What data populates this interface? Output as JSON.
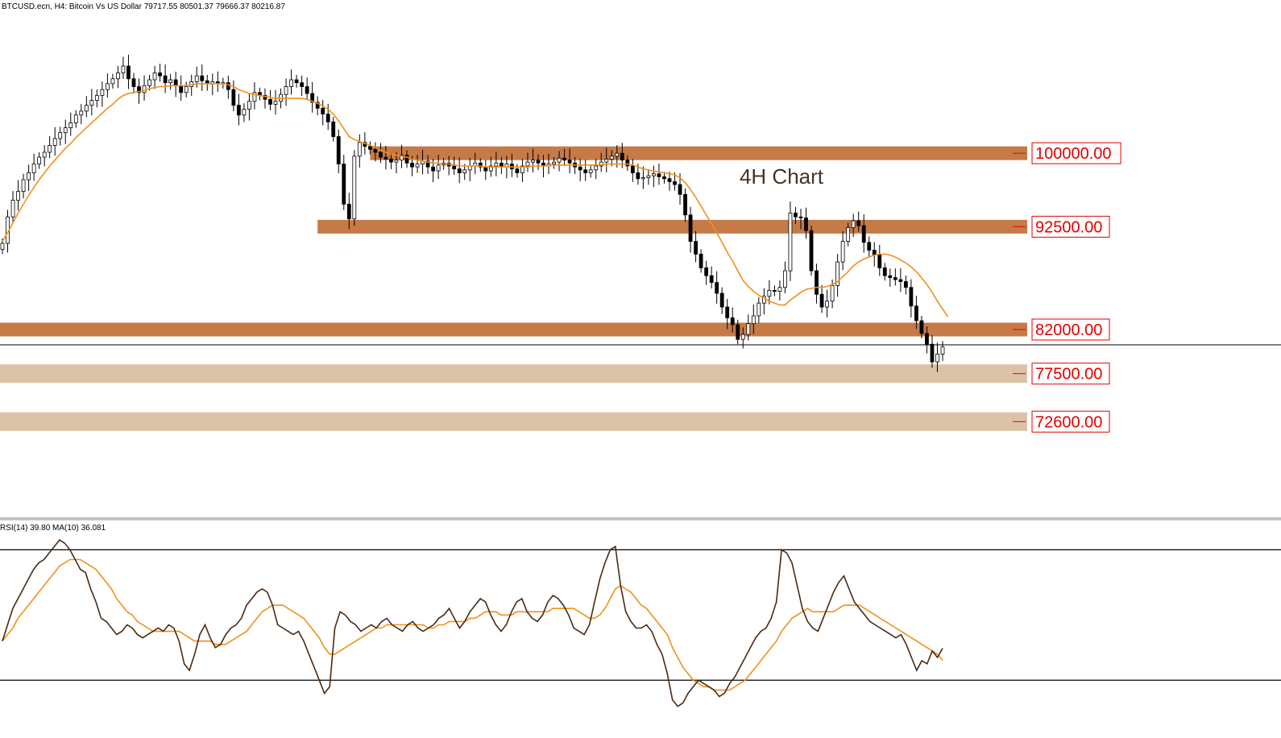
{
  "header": {
    "symbol_info": "BTCUSD.ecn, H4:  Bitcoin Vs US Dollar  79717.55 80501.37 79666.37 80216.87"
  },
  "chart_title": "4H Chart",
  "rsi_header": "RSI(14) 39.80 MA(10) 36.081",
  "colors": {
    "resistance_zone": "#c67a48",
    "support_zone": "#dcc3a8",
    "ma_line": "#f0901c",
    "rsi_line": "#4a2a12",
    "candle": "#000000",
    "label_red": "#e00000"
  },
  "chart_data": [
    {
      "type": "candlestick",
      "title": "4H Chart",
      "symbol": "BTCUSD.ecn",
      "timeframe": "H4",
      "ohlc_current": {
        "open": 79717.55,
        "high": 80501.37,
        "low": 79666.37,
        "close": 80216.87
      },
      "ylim": [
        63000,
        114000
      ],
      "ma_period": 20,
      "close_series": [
        90800,
        93500,
        95200,
        96100,
        97300,
        98000,
        98900,
        99600,
        100100,
        100800,
        101500,
        102100,
        102600,
        103100,
        103900,
        104300,
        104900,
        105400,
        105900,
        106500,
        107100,
        107600,
        108200,
        108900,
        107600,
        106800,
        106200,
        106900,
        107500,
        108200,
        107900,
        107200,
        107500,
        106900,
        106200,
        106800,
        107300,
        107900,
        107400,
        107100,
        107300,
        107100,
        107200,
        106500,
        104900,
        103900,
        104500,
        105300,
        106200,
        105900,
        105500,
        105000,
        105300,
        106000,
        106800,
        107500,
        107200,
        106800,
        106100,
        105200,
        104600,
        104000,
        103200,
        101700,
        98900,
        94800,
        93300,
        99700,
        101100,
        100700,
        100400,
        100100,
        99600,
        99400,
        99100,
        99300,
        99800,
        99000,
        98600,
        98900,
        99200,
        98600,
        98200,
        98800,
        99000,
        98700,
        98400,
        98000,
        98300,
        98700,
        99000,
        98600,
        98200,
        98700,
        99000,
        98600,
        98900,
        98400,
        98000,
        98700,
        99100,
        99300,
        99000,
        98700,
        98900,
        99100,
        99500,
        99300,
        99000,
        98600,
        98300,
        98000,
        98300,
        98700,
        99100,
        99400,
        99700,
        100000,
        99300,
        98700,
        98000,
        97400,
        97500,
        97700,
        97900,
        97600,
        97400,
        97100,
        96800,
        95800,
        93700,
        91000,
        89700,
        88300,
        87500,
        86800,
        85700,
        84300,
        83200,
        82500,
        81000,
        81500,
        82600,
        83400,
        84700,
        85400,
        86000,
        85900,
        86300,
        88000,
        93900,
        93500,
        93400,
        92100,
        88000,
        85600,
        84300,
        84900,
        86500,
        88900,
        91000,
        92400,
        93100,
        92600,
        90900,
        90100,
        89600,
        88300,
        87500,
        87300,
        87100,
        86900,
        86300,
        84400,
        82900,
        81600,
        80500,
        78700,
        79500,
        80217
      ],
      "ma_series": [
        91000,
        91900,
        92900,
        93900,
        94800,
        95700,
        96500,
        97300,
        98000,
        98700,
        99300,
        99900,
        100500,
        101000,
        101600,
        102100,
        102600,
        103100,
        103600,
        104100,
        104600,
        105000,
        105500,
        105900,
        106100,
        106200,
        106300,
        106400,
        106600,
        106700,
        106800,
        106800,
        106900,
        106900,
        106900,
        106900,
        107000,
        107100,
        107100,
        107100,
        107100,
        107100,
        107100,
        107000,
        106800,
        106500,
        106300,
        106100,
        106000,
        105900,
        105800,
        105700,
        105600,
        105600,
        105600,
        105600,
        105600,
        105600,
        105500,
        105300,
        105100,
        104800,
        104500,
        104000,
        103300,
        102500,
        101700,
        101400,
        101200,
        101000,
        100800,
        100600,
        100300,
        100100,
        99900,
        99800,
        99700,
        99600,
        99400,
        99300,
        99200,
        99100,
        99000,
        99000,
        98900,
        98900,
        98800,
        98700,
        98700,
        98700,
        98700,
        98700,
        98600,
        98600,
        98600,
        98600,
        98600,
        98600,
        98600,
        98600,
        98600,
        98700,
        98700,
        98700,
        98700,
        98800,
        98800,
        98800,
        98800,
        98800,
        98800,
        98800,
        98800,
        98800,
        98800,
        98900,
        98900,
        98900,
        98900,
        98900,
        98800,
        98600,
        98400,
        98300,
        98200,
        98100,
        98000,
        97900,
        97800,
        97500,
        97000,
        96300,
        95500,
        94600,
        93700,
        92800,
        91900,
        90900,
        89900,
        89000,
        88000,
        87000,
        86400,
        85900,
        85500,
        85200,
        84900,
        84700,
        84500,
        84500,
        85000,
        85400,
        85800,
        86100,
        86200,
        86300,
        86300,
        86400,
        86600,
        86900,
        87400,
        87900,
        88500,
        88900,
        89200,
        89400,
        89600,
        89700,
        89700,
        89600,
        89400,
        89100,
        88800,
        88400,
        87900,
        87300,
        86600,
        85800,
        84900,
        84100,
        83300
      ],
      "levels": [
        {
          "price": 100000,
          "label": "100000.00",
          "kind": "resistance",
          "from_index": 70
        },
        {
          "price": 92500,
          "label": "92500.00",
          "kind": "resistance",
          "from_index": 60
        },
        {
          "price": 82000,
          "label": "82000.00",
          "kind": "resistance",
          "from_index": 0
        },
        {
          "price": 77500,
          "label": "77500.00",
          "kind": "support",
          "from_index": 0
        },
        {
          "price": 72600,
          "label": "72600.00",
          "kind": "support",
          "from_index": 0
        }
      ],
      "grid": false
    },
    {
      "type": "line",
      "title": "RSI(14) 39.80 MA(10) 36.081",
      "series": [
        {
          "name": "RSI(14)",
          "values": [
            42,
            47,
            52,
            55,
            58,
            61,
            64,
            66,
            67,
            69,
            71,
            73,
            72,
            70,
            67,
            64,
            63,
            58,
            54,
            49,
            48,
            46,
            44,
            45,
            47,
            46,
            44,
            43,
            44,
            45,
            46,
            45,
            47,
            46,
            42,
            35,
            33,
            38,
            44,
            47,
            43,
            40,
            41,
            44,
            46,
            47,
            49,
            53,
            55,
            57,
            58,
            57,
            53,
            47,
            46,
            45,
            44,
            45,
            42,
            38,
            34,
            30,
            26,
            28,
            46,
            51,
            50,
            48,
            47,
            45,
            46,
            47,
            46,
            48,
            49,
            47,
            46,
            45,
            47,
            48,
            46,
            45,
            46,
            47,
            49,
            50,
            52,
            49,
            46,
            48,
            51,
            53,
            55,
            54,
            50,
            47,
            45,
            47,
            51,
            54,
            55,
            51,
            49,
            48,
            50,
            54,
            56,
            55,
            53,
            50,
            46,
            45,
            44,
            47,
            54,
            61,
            66,
            70,
            71,
            59,
            51,
            48,
            46,
            46,
            47,
            45,
            41,
            38,
            32,
            24,
            22,
            23,
            26,
            28,
            30,
            29,
            28,
            27,
            25,
            26,
            29,
            31,
            34,
            37,
            40,
            43,
            45,
            46,
            49,
            54,
            70,
            69,
            66,
            59,
            52,
            48,
            46,
            45,
            49,
            53,
            57,
            60,
            62,
            58,
            54,
            52,
            50,
            48,
            47,
            46,
            45,
            44,
            43,
            44,
            41,
            37,
            33,
            36,
            35,
            39,
            37,
            39.8
          ]
        },
        {
          "name": "MA(10)",
          "values": [
            42,
            44,
            46,
            49,
            51,
            53,
            55,
            57,
            59,
            61,
            63,
            65,
            66,
            67,
            67,
            67,
            66,
            65,
            64,
            62,
            60,
            58,
            55,
            53,
            51,
            50,
            48,
            47,
            46,
            45,
            45,
            45,
            45,
            45,
            45,
            44,
            43,
            42,
            42,
            42,
            42,
            41,
            41,
            41,
            42,
            43,
            44,
            45,
            47,
            49,
            51,
            52,
            53,
            53,
            53,
            52,
            51,
            50,
            49,
            47,
            45,
            43,
            40,
            38,
            38,
            39,
            40,
            41,
            42,
            43,
            44,
            45,
            46,
            46,
            47,
            47,
            47,
            47,
            47,
            47,
            47,
            47,
            46,
            46,
            47,
            47,
            48,
            48,
            48,
            48,
            49,
            49,
            50,
            51,
            51,
            51,
            50,
            50,
            50,
            51,
            51,
            51,
            51,
            51,
            51,
            51,
            52,
            52,
            52,
            52,
            52,
            51,
            50,
            49,
            49,
            50,
            52,
            55,
            58,
            59,
            58,
            57,
            55,
            53,
            52,
            50,
            48,
            46,
            44,
            40,
            37,
            34,
            32,
            30,
            29,
            28,
            28,
            27,
            27,
            27,
            27,
            28,
            29,
            30,
            32,
            34,
            36,
            38,
            40,
            42,
            45,
            47,
            49,
            50,
            51,
            52,
            51,
            51,
            51,
            51,
            51,
            52,
            53,
            53,
            53,
            53,
            52,
            51,
            50,
            49,
            48,
            47,
            46,
            45,
            44,
            43,
            42,
            41,
            40,
            39,
            38,
            36.081
          ]
        }
      ],
      "levels": [
        70,
        30
      ],
      "ylim": [
        15,
        78
      ]
    }
  ]
}
